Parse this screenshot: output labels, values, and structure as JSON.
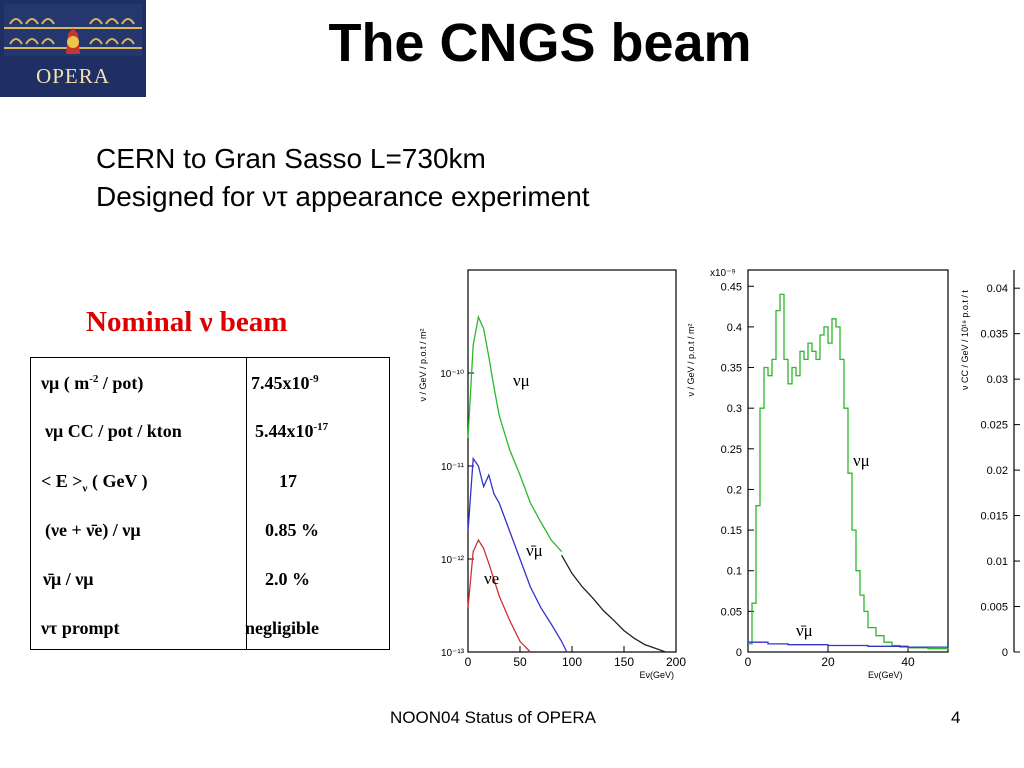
{
  "logo": {
    "text": "OPERA"
  },
  "title": "The CNGS beam",
  "subtitle": {
    "line1": "CERN to Gran Sasso L=730km",
    "line2": "Designed for ντ appearance experiment"
  },
  "nominal": "Nominal ν  beam",
  "table": {
    "r1": {
      "label_pre": "νμ ( m",
      "label_sup": "-2",
      "label_post": " / pot)",
      "value_pre": "7.45x10",
      "value_sup": "-9"
    },
    "r2": {
      "label": "νμ CC / pot / kton",
      "value_pre": "5.44x10",
      "value_sup": "-17"
    },
    "r3": {
      "label_pre": "< E >",
      "label_sub": "ν",
      "label_post": "  ( GeV )",
      "value": "17"
    },
    "r4": {
      "label": "(νe + ν̄e) /  νμ",
      "value": "0.85 %"
    },
    "r5": {
      "label": "ν̄μ  /  νμ",
      "value": "2.0 %"
    },
    "r6": {
      "label": "ντ  prompt",
      "value": "negligible"
    }
  },
  "footer": "NOON04 Status of OPERA",
  "page_number": "4",
  "chart_data": [
    {
      "type": "line",
      "ylabel": "ν / GeV / p.o.t / m²",
      "xlabel": "Eν(GeV)",
      "xlim": [
        0,
        200
      ],
      "yscale": "log",
      "ylim": [
        1e-13,
        1e-09
      ],
      "x_ticks": [
        "0",
        "50",
        "100",
        "150",
        "200"
      ],
      "y_ticks": [
        "10⁻¹³",
        "10⁻¹²",
        "10⁻¹¹",
        "10⁻¹⁰"
      ],
      "annotations": [
        "νμ",
        "ν̄μ",
        "νe"
      ],
      "series": [
        {
          "name": "νμ",
          "color": "#2db82d",
          "x": [
            0,
            5,
            10,
            15,
            20,
            25,
            30,
            40,
            50,
            60,
            70,
            80,
            90
          ],
          "y": [
            2e-11,
            2e-10,
            4e-10,
            3e-10,
            1.5e-10,
            7e-11,
            3.5e-11,
            1.5e-11,
            8e-12,
            4e-12,
            2.5e-12,
            1.6e-12,
            1.2e-12
          ]
        },
        {
          "name": "",
          "color": "#222222",
          "x": [
            90,
            100,
            110,
            120,
            130,
            140,
            150,
            160,
            170,
            180,
            190,
            200
          ],
          "y": [
            1.1e-12,
            7e-13,
            5e-13,
            3.8e-13,
            2.8e-13,
            2.2e-13,
            1.7e-13,
            1.4e-13,
            1.2e-13,
            1.1e-13,
            1e-13,
            1e-13
          ]
        },
        {
          "name": "ν̄μ",
          "color": "#3333cc",
          "x": [
            0,
            5,
            10,
            15,
            20,
            25,
            30,
            40,
            50,
            60,
            70,
            80,
            90,
            95
          ],
          "y": [
            2e-12,
            1.2e-11,
            1e-11,
            6e-12,
            8e-12,
            5e-12,
            4e-12,
            2e-12,
            1e-12,
            5e-13,
            3e-13,
            2e-13,
            1.3e-13,
            1e-13
          ]
        },
        {
          "name": "νe",
          "color": "#cc3333",
          "x": [
            0,
            5,
            10,
            15,
            20,
            25,
            30,
            40,
            50,
            60
          ],
          "y": [
            3e-13,
            1.2e-12,
            1.6e-12,
            1.3e-12,
            9e-13,
            6e-13,
            4e-13,
            2.2e-13,
            1.3e-13,
            1e-13
          ]
        }
      ]
    },
    {
      "type": "line",
      "ylabel": "ν / GeV / p.o.t / m²",
      "xlabel": "Eν(GeV)",
      "scale_label": "x10⁻⁹",
      "xlim": [
        0,
        50
      ],
      "ylim": [
        0,
        0.47
      ],
      "x_ticks": [
        "0",
        "20",
        "40"
      ],
      "y_ticks": [
        "0",
        "0.05",
        "0.1",
        "0.15",
        "0.2",
        "0.25",
        "0.3",
        "0.35",
        "0.4",
        "0.45"
      ],
      "annotations": [
        "νμ",
        "ν̄μ"
      ],
      "series": [
        {
          "name": "νμ",
          "color": "#2db82d",
          "x": [
            0,
            1,
            2,
            3,
            4,
            5,
            6,
            7,
            8,
            9,
            10,
            11,
            12,
            13,
            14,
            15,
            16,
            17,
            18,
            19,
            20,
            21,
            22,
            23,
            24,
            25,
            26,
            27,
            28,
            29,
            30,
            32,
            34,
            36,
            38,
            40,
            45,
            50
          ],
          "y": [
            0.01,
            0.06,
            0.18,
            0.3,
            0.35,
            0.34,
            0.36,
            0.42,
            0.44,
            0.36,
            0.33,
            0.35,
            0.34,
            0.37,
            0.36,
            0.38,
            0.37,
            0.36,
            0.39,
            0.4,
            0.38,
            0.41,
            0.4,
            0.36,
            0.3,
            0.22,
            0.15,
            0.1,
            0.07,
            0.05,
            0.03,
            0.02,
            0.012,
            0.008,
            0.006,
            0.005,
            0.004,
            0.003
          ]
        },
        {
          "name": "ν̄μ",
          "color": "#3333cc",
          "x": [
            0,
            5,
            10,
            20,
            30,
            40,
            50
          ],
          "y": [
            0.012,
            0.01,
            0.009,
            0.008,
            0.007,
            0.006,
            0.005
          ]
        }
      ]
    },
    {
      "type": "line",
      "ylabel": "ν CC / GeV / 10¹⁹ p.o.t / t",
      "y_ticks": [
        "0",
        "0.005",
        "0.01",
        "0.015",
        "0.02",
        "0.025",
        "0.03",
        "0.035",
        "0.04"
      ],
      "ylim": [
        0,
        0.042
      ],
      "series": []
    }
  ]
}
